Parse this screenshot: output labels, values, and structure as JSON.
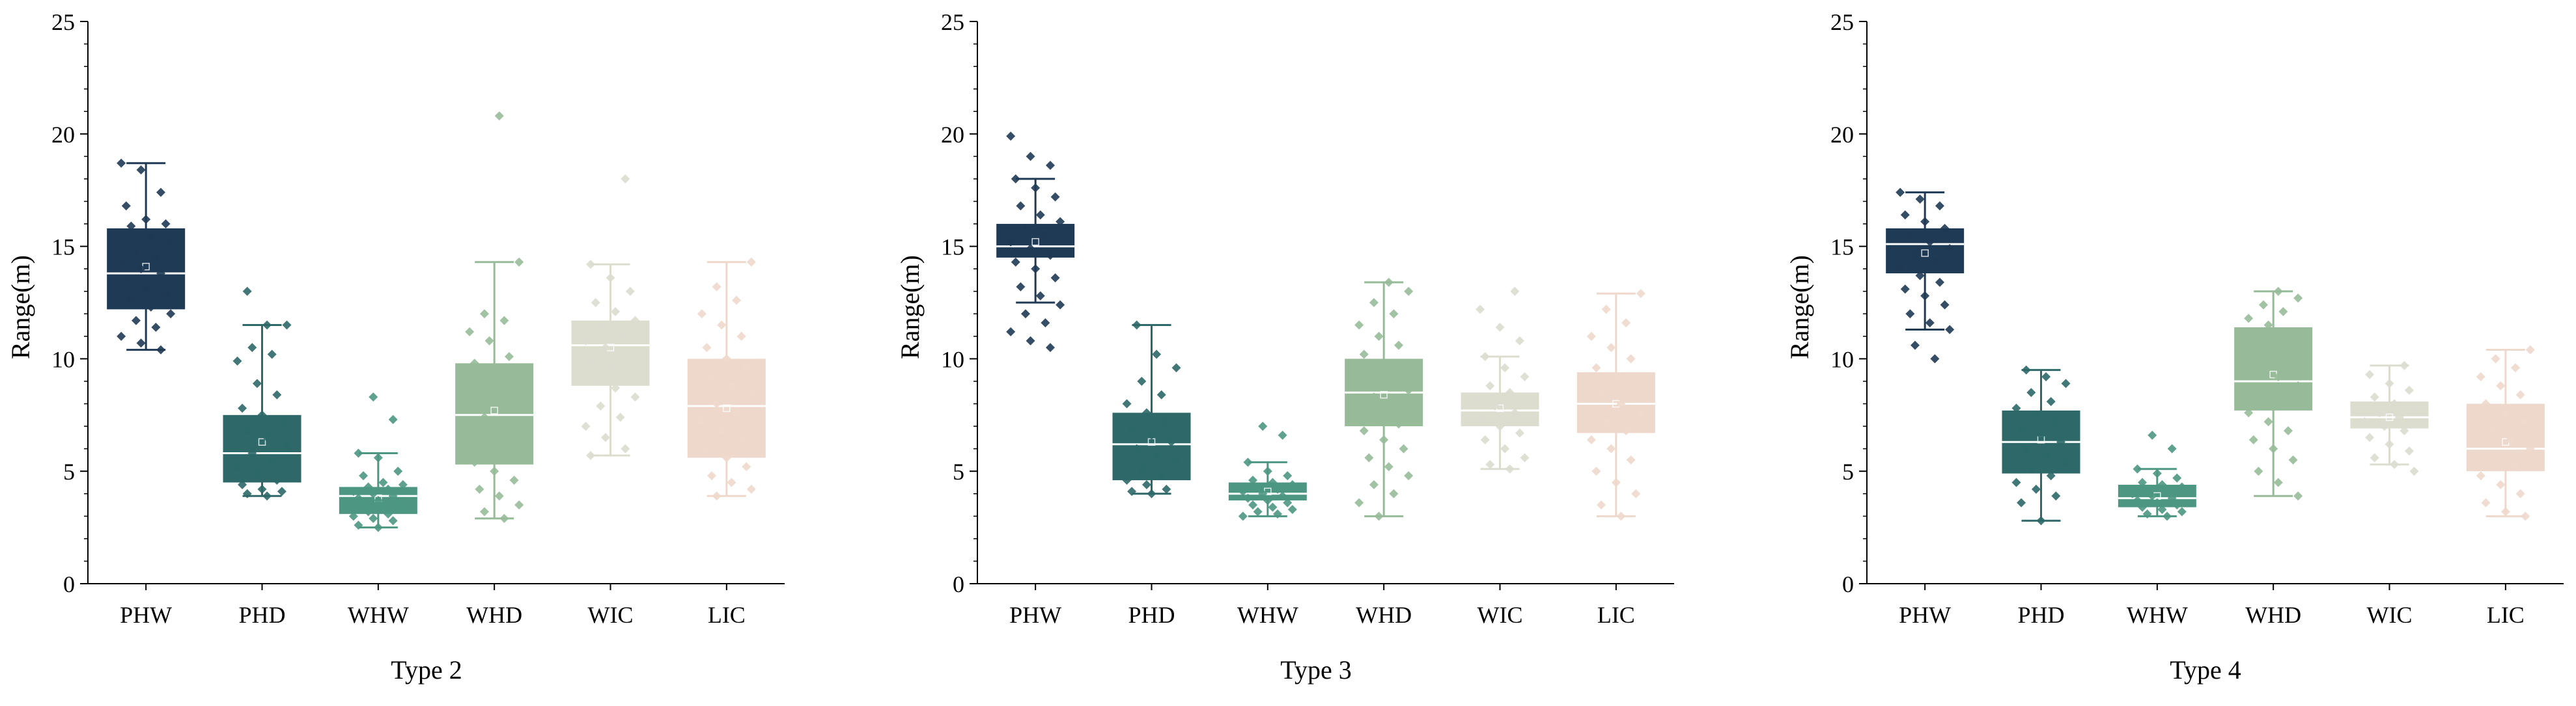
{
  "colors": {
    "PHW": "#1f3a54",
    "PHD": "#2e6868",
    "WHW": "#4d9782",
    "WHD": "#97bb99",
    "WIC": "#dcddcf",
    "LIC": "#eed8cc",
    "median_line": "#ffffff",
    "axis": "#000000"
  },
  "chart_data": [
    {
      "type": "box",
      "xlabel": "Type 2",
      "ylabel": "Range(m)",
      "ylim": [
        0,
        25
      ],
      "yticks": [
        "0",
        "5",
        "10",
        "15",
        "20",
        "25"
      ],
      "categories": [
        "PHW",
        "PHD",
        "WHW",
        "WHD",
        "WIC",
        "LIC"
      ],
      "boxes": [
        {
          "name": "PHW",
          "q1": 12.2,
          "median": 13.8,
          "q3": 15.8,
          "whisker_low": 10.4,
          "whisker_high": 18.7,
          "mean": 14.1,
          "points": [
            18.7,
            18.4,
            17.4,
            16.8,
            16.2,
            16.0,
            15.9,
            15.5,
            15.1,
            14.8,
            14.5,
            14.2,
            14.0,
            13.8,
            13.5,
            13.2,
            12.9,
            12.6,
            12.3,
            12.0,
            11.7,
            11.4,
            11.0,
            10.7,
            10.4
          ]
        },
        {
          "name": "PHD",
          "q1": 4.5,
          "median": 5.8,
          "q3": 7.5,
          "whisker_low": 3.9,
          "whisker_high": 11.5,
          "mean": 6.3,
          "points": [
            13.0,
            11.5,
            11.5,
            10.5,
            10.2,
            9.9,
            8.9,
            8.4,
            7.8,
            7.5,
            7.2,
            6.8,
            6.5,
            6.1,
            5.8,
            5.5,
            5.2,
            4.9,
            4.6,
            4.4,
            4.2,
            4.1,
            4.0,
            3.9
          ]
        },
        {
          "name": "WHW",
          "q1": 3.1,
          "median": 3.9,
          "q3": 4.3,
          "whisker_low": 2.5,
          "whisker_high": 5.8,
          "mean": 3.8,
          "points": [
            8.3,
            7.3,
            5.8,
            5.6,
            5.0,
            4.8,
            4.5,
            4.4,
            4.3,
            4.2,
            4.1,
            4.0,
            3.9,
            3.8,
            3.7,
            3.6,
            3.5,
            3.4,
            3.3,
            3.2,
            3.1,
            3.0,
            2.9,
            2.8,
            2.6,
            2.5
          ]
        },
        {
          "name": "WHD",
          "q1": 5.3,
          "median": 7.5,
          "q3": 9.8,
          "whisker_low": 2.9,
          "whisker_high": 14.3,
          "mean": 7.7,
          "points": [
            20.8,
            14.3,
            12.0,
            11.7,
            11.2,
            10.8,
            10.1,
            9.8,
            9.4,
            9.0,
            8.6,
            8.2,
            7.8,
            7.4,
            7.0,
            6.6,
            6.2,
            5.8,
            5.4,
            5.0,
            4.6,
            4.2,
            3.9,
            3.5,
            3.2,
            2.9
          ]
        },
        {
          "name": "WIC",
          "q1": 8.8,
          "median": 10.6,
          "q3": 11.7,
          "whisker_low": 5.7,
          "whisker_high": 14.2,
          "mean": 10.5,
          "points": [
            18.0,
            14.2,
            13.6,
            13.0,
            12.5,
            12.1,
            11.7,
            11.4,
            11.1,
            10.8,
            10.5,
            10.2,
            9.9,
            9.6,
            9.3,
            9.0,
            8.7,
            8.3,
            7.9,
            7.4,
            7.0,
            6.5,
            6.0,
            5.7
          ]
        },
        {
          "name": "LIC",
          "q1": 5.6,
          "median": 7.9,
          "q3": 10.0,
          "whisker_low": 3.9,
          "whisker_high": 14.3,
          "mean": 7.8,
          "points": [
            14.3,
            13.2,
            12.6,
            12.0,
            11.5,
            11.0,
            10.5,
            10.0,
            9.6,
            9.2,
            8.8,
            8.4,
            8.0,
            7.6,
            7.2,
            6.8,
            6.4,
            6.0,
            5.6,
            5.2,
            4.8,
            4.5,
            4.2,
            3.9
          ]
        }
      ]
    },
    {
      "type": "box",
      "xlabel": "Type 3",
      "ylabel": "Range(m)",
      "ylim": [
        0,
        25
      ],
      "yticks": [
        "0",
        "5",
        "10",
        "15",
        "20",
        "25"
      ],
      "categories": [
        "PHW",
        "PHD",
        "WHW",
        "WHD",
        "WIC",
        "LIC"
      ],
      "boxes": [
        {
          "name": "PHW",
          "q1": 14.5,
          "median": 15.0,
          "q3": 16.0,
          "whisker_low": 12.5,
          "whisker_high": 18.0,
          "mean": 15.2,
          "points": [
            19.9,
            19.0,
            18.6,
            18.0,
            17.6,
            17.2,
            16.8,
            16.4,
            16.1,
            15.8,
            15.5,
            15.2,
            14.9,
            14.6,
            14.3,
            14.0,
            13.6,
            13.2,
            12.8,
            12.4,
            12.0,
            11.6,
            11.2,
            10.8,
            10.5
          ]
        },
        {
          "name": "PHD",
          "q1": 4.6,
          "median": 6.2,
          "q3": 7.6,
          "whisker_low": 4.0,
          "whisker_high": 11.5,
          "mean": 6.3,
          "points": [
            11.5,
            10.2,
            9.6,
            9.0,
            8.4,
            8.0,
            7.6,
            7.2,
            6.9,
            6.6,
            6.3,
            6.0,
            5.7,
            5.4,
            5.1,
            4.8,
            4.6,
            4.4,
            4.2,
            4.1,
            4.0
          ]
        },
        {
          "name": "WHW",
          "q1": 3.7,
          "median": 4.0,
          "q3": 4.5,
          "whisker_low": 3.0,
          "whisker_high": 5.4,
          "mean": 4.1,
          "points": [
            7.0,
            6.6,
            5.4,
            5.0,
            4.8,
            4.6,
            4.5,
            4.4,
            4.3,
            4.2,
            4.1,
            4.0,
            3.9,
            3.8,
            3.7,
            3.6,
            3.5,
            3.4,
            3.3,
            3.2,
            3.1,
            3.0
          ]
        },
        {
          "name": "WHD",
          "q1": 7.0,
          "median": 8.5,
          "q3": 10.0,
          "whisker_low": 3.0,
          "whisker_high": 13.4,
          "mean": 8.4,
          "points": [
            13.4,
            13.0,
            12.5,
            12.0,
            11.5,
            11.0,
            10.6,
            10.2,
            9.8,
            9.5,
            9.2,
            8.9,
            8.6,
            8.3,
            8.0,
            7.7,
            7.4,
            7.1,
            6.8,
            6.4,
            6.0,
            5.6,
            5.2,
            4.8,
            4.4,
            4.0,
            3.6,
            3.0
          ]
        },
        {
          "name": "WIC",
          "q1": 7.0,
          "median": 7.7,
          "q3": 8.5,
          "whisker_low": 5.1,
          "whisker_high": 10.1,
          "mean": 7.8,
          "points": [
            13.0,
            12.2,
            11.4,
            10.8,
            10.1,
            9.6,
            9.2,
            8.8,
            8.5,
            8.2,
            7.9,
            7.6,
            7.3,
            7.0,
            6.7,
            6.4,
            6.0,
            5.6,
            5.3,
            5.1
          ]
        },
        {
          "name": "LIC",
          "q1": 6.7,
          "median": 8.0,
          "q3": 9.4,
          "whisker_low": 3.0,
          "whisker_high": 12.9,
          "mean": 8.0,
          "points": [
            12.9,
            12.2,
            11.6,
            11.0,
            10.5,
            10.0,
            9.6,
            9.2,
            8.8,
            8.4,
            8.0,
            7.6,
            7.2,
            6.8,
            6.4,
            6.0,
            5.5,
            5.0,
            4.5,
            4.0,
            3.5,
            3.0
          ]
        }
      ]
    },
    {
      "type": "box",
      "xlabel": "Type 4",
      "ylabel": "Range(m)",
      "ylim": [
        0,
        25
      ],
      "yticks": [
        "0",
        "5",
        "10",
        "15",
        "20",
        "25"
      ],
      "categories": [
        "PHW",
        "PHD",
        "WHW",
        "WHD",
        "WIC",
        "LIC"
      ],
      "boxes": [
        {
          "name": "PHW",
          "q1": 13.8,
          "median": 15.1,
          "q3": 15.8,
          "whisker_low": 11.3,
          "whisker_high": 17.4,
          "mean": 14.7,
          "points": [
            17.4,
            17.1,
            16.8,
            16.4,
            16.1,
            15.8,
            15.5,
            15.2,
            14.9,
            14.6,
            14.3,
            14.0,
            13.7,
            13.4,
            13.1,
            12.8,
            12.4,
            12.0,
            11.6,
            11.3,
            10.6,
            10.0
          ]
        },
        {
          "name": "PHD",
          "q1": 4.9,
          "median": 6.3,
          "q3": 7.7,
          "whisker_low": 2.8,
          "whisker_high": 9.5,
          "mean": 6.4,
          "points": [
            9.5,
            9.2,
            8.9,
            8.5,
            8.1,
            7.8,
            7.5,
            7.2,
            6.9,
            6.6,
            6.3,
            6.0,
            5.7,
            5.4,
            5.1,
            4.8,
            4.5,
            4.2,
            3.9,
            3.6,
            2.8
          ]
        },
        {
          "name": "WHW",
          "q1": 3.4,
          "median": 3.8,
          "q3": 4.4,
          "whisker_low": 3.0,
          "whisker_high": 5.1,
          "mean": 3.9,
          "points": [
            6.6,
            6.0,
            5.1,
            4.9,
            4.7,
            4.5,
            4.4,
            4.3,
            4.2,
            4.1,
            4.0,
            3.9,
            3.8,
            3.7,
            3.6,
            3.5,
            3.4,
            3.3,
            3.2,
            3.1,
            3.0
          ]
        },
        {
          "name": "WHD",
          "q1": 7.7,
          "median": 9.0,
          "q3": 11.4,
          "whisker_low": 3.9,
          "whisker_high": 13.0,
          "mean": 9.3,
          "points": [
            13.0,
            12.7,
            12.4,
            12.1,
            11.8,
            11.5,
            11.2,
            10.8,
            10.4,
            10.0,
            9.6,
            9.2,
            8.8,
            8.4,
            8.0,
            7.6,
            7.2,
            6.8,
            6.4,
            6.0,
            5.5,
            5.0,
            4.5,
            3.9
          ]
        },
        {
          "name": "WIC",
          "q1": 6.9,
          "median": 7.4,
          "q3": 8.1,
          "whisker_low": 5.3,
          "whisker_high": 9.7,
          "mean": 7.4,
          "points": [
            9.7,
            9.3,
            8.9,
            8.6,
            8.3,
            8.0,
            7.8,
            7.6,
            7.4,
            7.2,
            7.0,
            6.8,
            6.5,
            6.2,
            5.9,
            5.6,
            5.3,
            5.0
          ]
        },
        {
          "name": "LIC",
          "q1": 5.0,
          "median": 6.0,
          "q3": 8.0,
          "whisker_low": 3.0,
          "whisker_high": 10.4,
          "mean": 6.3,
          "points": [
            10.4,
            10.0,
            9.6,
            9.2,
            8.8,
            8.4,
            8.0,
            7.6,
            7.2,
            6.8,
            6.4,
            6.0,
            5.6,
            5.2,
            4.8,
            4.4,
            4.0,
            3.6,
            3.2,
            3.0
          ]
        }
      ]
    }
  ]
}
